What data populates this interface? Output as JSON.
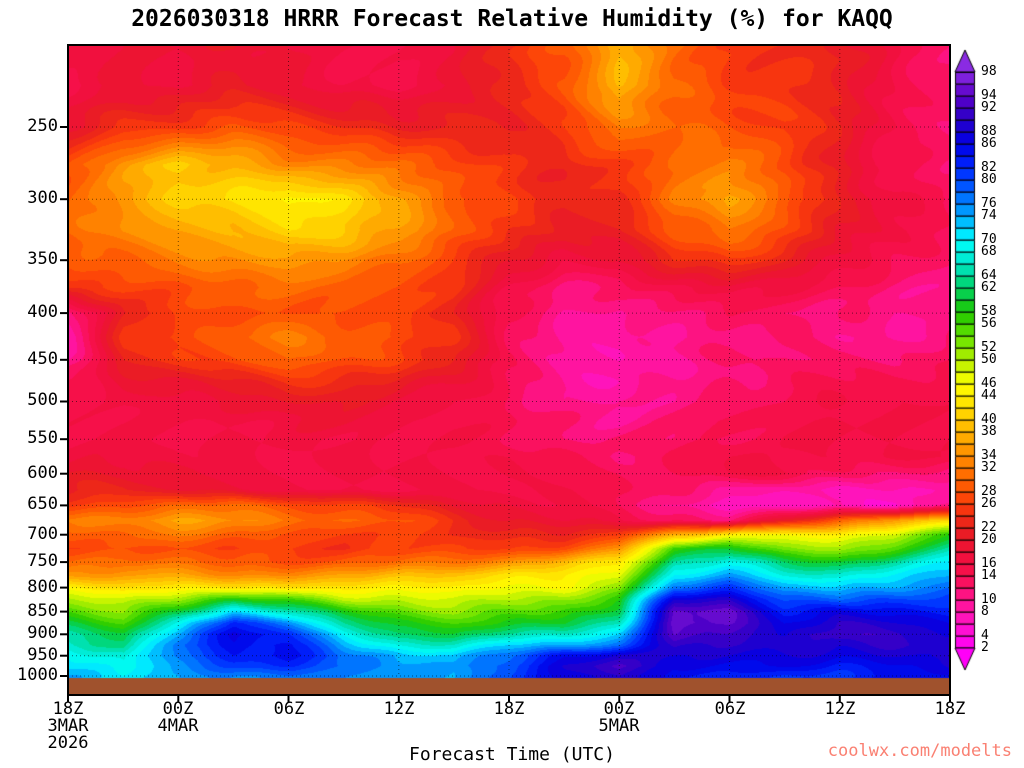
{
  "header": {
    "title": "2026030318 HRRR Forecast Relative Humidity (%) for KAQQ"
  },
  "footer": {
    "watermark": "coolwx.com/modelts",
    "watermark_color": "#FA8072"
  },
  "chart_data": {
    "type": "heatmap",
    "title": "2026030318 HRRR Forecast Relative Humidity (%) for KAQQ",
    "xlabel": "Forecast Time (UTC)",
    "ylabel": "",
    "grid": "dotted",
    "legend_position": "right",
    "x_hours": [
      0,
      3,
      6,
      9,
      12,
      15,
      18,
      21,
      24,
      27,
      30,
      33,
      36,
      39,
      42,
      45,
      48
    ],
    "x_ticks": [
      {
        "hour": 0,
        "lines": [
          "18Z",
          "3MAR",
          "2026"
        ]
      },
      {
        "hour": 6,
        "lines": [
          "00Z",
          "4MAR"
        ]
      },
      {
        "hour": 12,
        "lines": [
          "06Z"
        ]
      },
      {
        "hour": 18,
        "lines": [
          "12Z"
        ]
      },
      {
        "hour": 24,
        "lines": [
          "18Z"
        ]
      },
      {
        "hour": 30,
        "lines": [
          "00Z",
          "5MAR"
        ]
      },
      {
        "hour": 36,
        "lines": [
          "06Z"
        ]
      },
      {
        "hour": 42,
        "lines": [
          "12Z"
        ]
      },
      {
        "hour": 48,
        "lines": [
          "18Z"
        ]
      }
    ],
    "y_ticks": [
      250,
      300,
      350,
      400,
      450,
      500,
      550,
      600,
      650,
      700,
      750,
      800,
      850,
      900,
      950,
      1000
    ],
    "pressure_levels": [
      225,
      250,
      275,
      300,
      325,
      350,
      375,
      400,
      425,
      450,
      475,
      500,
      525,
      550,
      575,
      600,
      625,
      650,
      675,
      700,
      725,
      750,
      775,
      800,
      825,
      850,
      875,
      900,
      925,
      950,
      975,
      1000
    ],
    "rh_values": [
      [
        16,
        18,
        18,
        20,
        18,
        16,
        16,
        18,
        24,
        28,
        38,
        30,
        26,
        24,
        22,
        16,
        12
      ],
      [
        20,
        24,
        26,
        28,
        26,
        24,
        22,
        22,
        22,
        26,
        32,
        30,
        28,
        26,
        22,
        16,
        12
      ],
      [
        28,
        36,
        40,
        38,
        34,
        32,
        30,
        28,
        24,
        22,
        26,
        30,
        32,
        28,
        20,
        14,
        12
      ],
      [
        30,
        36,
        40,
        42,
        46,
        42,
        36,
        30,
        26,
        22,
        24,
        32,
        36,
        30,
        22,
        16,
        14
      ],
      [
        30,
        34,
        36,
        38,
        42,
        40,
        36,
        30,
        24,
        20,
        22,
        28,
        32,
        28,
        20,
        16,
        14
      ],
      [
        28,
        30,
        32,
        34,
        36,
        34,
        30,
        26,
        20,
        16,
        18,
        24,
        26,
        22,
        18,
        14,
        12
      ],
      [
        24,
        26,
        28,
        30,
        30,
        30,
        28,
        24,
        16,
        12,
        12,
        16,
        18,
        16,
        14,
        12,
        10
      ],
      [
        10,
        22,
        26,
        28,
        28,
        28,
        26,
        22,
        14,
        10,
        10,
        12,
        14,
        12,
        12,
        10,
        10
      ],
      [
        8,
        24,
        28,
        30,
        32,
        30,
        28,
        24,
        14,
        10,
        8,
        10,
        12,
        12,
        10,
        10,
        12
      ],
      [
        10,
        22,
        26,
        28,
        30,
        28,
        26,
        22,
        14,
        10,
        8,
        10,
        12,
        12,
        12,
        12,
        14
      ],
      [
        14,
        18,
        20,
        22,
        24,
        24,
        22,
        18,
        14,
        10,
        8,
        10,
        12,
        14,
        14,
        14,
        16
      ],
      [
        16,
        16,
        18,
        18,
        20,
        20,
        18,
        16,
        14,
        10,
        10,
        10,
        12,
        14,
        16,
        16,
        16
      ],
      [
        16,
        16,
        16,
        16,
        18,
        18,
        16,
        16,
        14,
        12,
        10,
        12,
        14,
        16,
        16,
        16,
        16
      ],
      [
        16,
        16,
        16,
        16,
        16,
        16,
        16,
        16,
        14,
        12,
        12,
        12,
        14,
        16,
        16,
        16,
        16
      ],
      [
        18,
        18,
        16,
        16,
        16,
        16,
        16,
        16,
        16,
        14,
        12,
        14,
        16,
        16,
        16,
        16,
        16
      ],
      [
        20,
        20,
        18,
        16,
        16,
        16,
        16,
        16,
        16,
        14,
        14,
        14,
        16,
        16,
        14,
        12,
        10
      ],
      [
        22,
        22,
        20,
        18,
        16,
        16,
        16,
        16,
        16,
        16,
        14,
        12,
        10,
        8,
        8,
        8,
        8
      ],
      [
        26,
        28,
        30,
        30,
        28,
        26,
        24,
        20,
        18,
        16,
        14,
        10,
        6,
        6,
        8,
        6,
        10
      ],
      [
        32,
        34,
        36,
        34,
        32,
        30,
        28,
        24,
        20,
        18,
        16,
        14,
        12,
        20,
        30,
        36,
        40
      ],
      [
        28,
        30,
        32,
        30,
        28,
        26,
        26,
        24,
        22,
        22,
        26,
        38,
        44,
        46,
        44,
        48,
        58
      ],
      [
        26,
        28,
        28,
        26,
        26,
        24,
        26,
        26,
        26,
        28,
        34,
        58,
        60,
        52,
        50,
        56,
        64
      ],
      [
        30,
        32,
        30,
        28,
        28,
        28,
        30,
        32,
        34,
        38,
        44,
        64,
        68,
        62,
        60,
        64,
        70
      ],
      [
        34,
        36,
        36,
        34,
        34,
        36,
        38,
        40,
        42,
        44,
        48,
        70,
        74,
        68,
        66,
        70,
        74
      ],
      [
        44,
        42,
        44,
        44,
        42,
        44,
        44,
        44,
        46,
        46,
        52,
        78,
        82,
        74,
        72,
        74,
        78
      ],
      [
        50,
        48,
        52,
        60,
        56,
        50,
        50,
        48,
        50,
        52,
        58,
        88,
        90,
        80,
        78,
        80,
        82
      ],
      [
        56,
        52,
        60,
        72,
        66,
        58,
        54,
        52,
        54,
        56,
        62,
        94,
        94,
        84,
        86,
        84,
        84
      ],
      [
        60,
        56,
        68,
        84,
        76,
        64,
        58,
        56,
        58,
        60,
        66,
        96,
        94,
        86,
        90,
        88,
        86
      ],
      [
        64,
        60,
        74,
        88,
        82,
        70,
        62,
        60,
        64,
        66,
        72,
        94,
        92,
        88,
        92,
        90,
        88
      ],
      [
        66,
        62,
        78,
        86,
        84,
        74,
        68,
        66,
        72,
        74,
        78,
        90,
        90,
        90,
        88,
        90,
        90
      ],
      [
        70,
        66,
        78,
        84,
        84,
        78,
        74,
        72,
        78,
        86,
        88,
        88,
        88,
        88,
        86,
        88,
        90
      ],
      [
        72,
        68,
        76,
        80,
        82,
        78,
        76,
        74,
        80,
        88,
        92,
        86,
        86,
        86,
        84,
        86,
        88
      ],
      [
        74,
        70,
        74,
        76,
        78,
        76,
        76,
        74,
        80,
        86,
        90,
        84,
        84,
        82,
        82,
        84,
        86
      ]
    ],
    "colorbar_labels": [
      "98",
      "94",
      "92",
      "88",
      "86",
      "82",
      "80",
      "76",
      "74",
      "70",
      "68",
      "64",
      "62",
      "58",
      "56",
      "52",
      "50",
      "46",
      "44",
      "40",
      "38",
      "34",
      "32",
      "28",
      "26",
      "22",
      "20",
      "16",
      "14",
      "10",
      "8",
      "4",
      "2"
    ],
    "colorbar_range": {
      "min": 2,
      "max": 98,
      "step": 2
    },
    "colormap_stops": [
      [
        2,
        "#FF00F8"
      ],
      [
        6,
        "#FF14C8"
      ],
      [
        10,
        "#FF1493"
      ],
      [
        14,
        "#F8104E"
      ],
      [
        18,
        "#EE1038"
      ],
      [
        22,
        "#E8201E"
      ],
      [
        26,
        "#FC3C0A"
      ],
      [
        30,
        "#FF6400"
      ],
      [
        34,
        "#FF8C00"
      ],
      [
        38,
        "#FFB400"
      ],
      [
        42,
        "#FFDC00"
      ],
      [
        46,
        "#FFFF00"
      ],
      [
        50,
        "#B4F000"
      ],
      [
        54,
        "#64E100"
      ],
      [
        58,
        "#1EC800"
      ],
      [
        62,
        "#00D264"
      ],
      [
        66,
        "#00E6C8"
      ],
      [
        70,
        "#00FFFF"
      ],
      [
        74,
        "#00A8FF"
      ],
      [
        78,
        "#0064FF"
      ],
      [
        82,
        "#0028FF"
      ],
      [
        86,
        "#0000E6"
      ],
      [
        90,
        "#2800C8"
      ],
      [
        94,
        "#5A00C8"
      ],
      [
        98,
        "#8A2BE2"
      ]
    ],
    "terrain_color": "#A0522D"
  }
}
